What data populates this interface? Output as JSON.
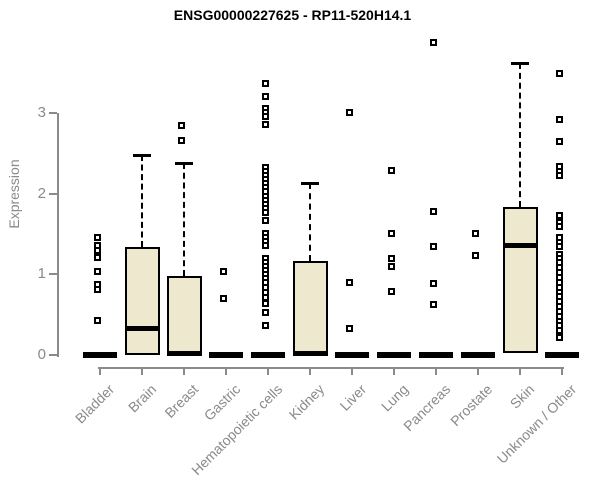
{
  "colors": {
    "background": "#ffffff",
    "box_fill": "#ede8ce",
    "box_border": "#000000",
    "axis_gray": "#8a8a8a",
    "title_color": "#000000"
  },
  "chart_data": {
    "type": "box",
    "title": "ENSG00000227625 - RP11-520H14.1",
    "ylabel": "Expression",
    "xlabel": "",
    "ylim": [
      0,
      3.9
    ],
    "yticks": [
      0,
      1,
      2,
      3
    ],
    "grid": false,
    "legend": "none",
    "categories": [
      "Bladder",
      "Brain",
      "Breast",
      "Gastric",
      "Hematopoietic cells",
      "Kidney",
      "Liver",
      "Lung",
      "Pancreas",
      "Prostate",
      "Skin",
      "Unknown / Other"
    ],
    "series": [
      {
        "name": "Bladder",
        "q1": 0,
        "median": 0,
        "q3": 0,
        "whisker_low": 0,
        "whisker_high": 0,
        "outliers": [
          1.45,
          1.36,
          1.3,
          1.21,
          1.03,
          0.87,
          0.81,
          0.43
        ]
      },
      {
        "name": "Brain",
        "q1": 0,
        "median": 0.33,
        "q3": 1.34,
        "whisker_low": 0,
        "whisker_high": 2.48,
        "outliers": []
      },
      {
        "name": "Breast",
        "q1": 0,
        "median": 0.02,
        "q3": 0.98,
        "whisker_low": 0,
        "whisker_high": 2.38,
        "outliers": [
          2.85,
          2.66
        ]
      },
      {
        "name": "Gastric",
        "q1": 0,
        "median": 0,
        "q3": 0,
        "whisker_low": 0,
        "whisker_high": 0,
        "outliers": [
          1.04,
          0.7
        ]
      },
      {
        "name": "Hematopoietic cells",
        "q1": 0,
        "median": 0,
        "q3": 0,
        "whisker_low": 0,
        "whisker_high": 0,
        "outliers": [
          3.37,
          3.2,
          3.05,
          3.0,
          2.95,
          2.86,
          2.32,
          2.27,
          2.22,
          2.17,
          2.12,
          2.07,
          2.02,
          1.97,
          1.92,
          1.87,
          1.82,
          1.77,
          1.67,
          1.51,
          1.46,
          1.41,
          1.36,
          1.2,
          1.15,
          1.1,
          1.05,
          1.0,
          0.95,
          0.9,
          0.84,
          0.78,
          0.71,
          0.64,
          0.53,
          0.37
        ]
      },
      {
        "name": "Kidney",
        "q1": 0,
        "median": 0.02,
        "q3": 1.16,
        "whisker_low": 0,
        "whisker_high": 2.13,
        "outliers": []
      },
      {
        "name": "Liver",
        "q1": 0,
        "median": 0,
        "q3": 0,
        "whisker_low": 0,
        "whisker_high": 0,
        "outliers": [
          3.01,
          0.9,
          0.33
        ]
      },
      {
        "name": "Lung",
        "q1": 0,
        "median": 0,
        "q3": 0,
        "whisker_low": 0,
        "whisker_high": 0,
        "outliers": [
          2.29,
          1.5,
          1.19,
          1.1,
          0.79
        ]
      },
      {
        "name": "Pancreas",
        "q1": 0,
        "median": 0,
        "q3": 0,
        "whisker_low": 0,
        "whisker_high": 0,
        "outliers": [
          3.87,
          1.78,
          1.35,
          0.89,
          0.63
        ]
      },
      {
        "name": "Prostate",
        "q1": 0,
        "median": 0,
        "q3": 0,
        "whisker_low": 0,
        "whisker_high": 0,
        "outliers": [
          1.5,
          1.23
        ]
      },
      {
        "name": "Skin",
        "q1": 0.02,
        "median": 1.36,
        "q3": 1.83,
        "whisker_low": 0.02,
        "whisker_high": 3.62,
        "outliers": []
      },
      {
        "name": "Unknown / Other",
        "q1": 0,
        "median": 0,
        "q3": 0,
        "whisker_low": 0,
        "whisker_high": 0,
        "outliers": [
          3.49,
          2.92,
          2.64,
          2.33,
          2.28,
          2.23,
          1.73,
          1.64,
          1.59,
          1.46,
          1.4,
          1.34,
          1.24,
          1.2,
          1.15,
          1.08,
          1.02,
          0.96,
          0.9,
          0.84,
          0.78,
          0.72,
          0.66,
          0.6,
          0.54,
          0.48,
          0.42,
          0.36,
          0.3,
          0.22
        ]
      }
    ]
  }
}
